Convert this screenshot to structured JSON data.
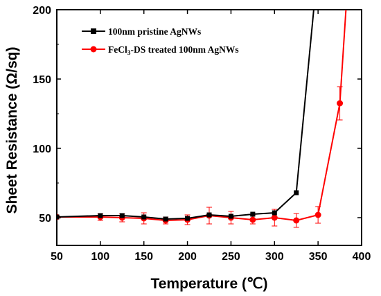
{
  "chart_data": {
    "type": "line",
    "xlabel": "Temperature (℃)",
    "ylabel": "Sheet Resistance (Ω/sq)",
    "xlim": [
      50,
      400
    ],
    "ylim": [
      30,
      200
    ],
    "x_ticks": [
      50,
      100,
      150,
      200,
      250,
      300,
      350,
      400
    ],
    "y_ticks": [
      50,
      100,
      150,
      200
    ],
    "grid": false,
    "legend_position": "top-left",
    "series": [
      {
        "name": "100nm pristine AgNWs",
        "color": "#000000",
        "marker": "square",
        "x": [
          50,
          100,
          125,
          150,
          175,
          200,
          225,
          250,
          275,
          300,
          325,
          345
        ],
        "y": [
          50.5,
          51.5,
          51.5,
          50.5,
          49,
          49.5,
          52,
          51,
          52.5,
          53.5,
          68,
          200
        ],
        "marker_count": 11
      },
      {
        "name": "FeCl3-DS treated 100nm AgNWs",
        "color": "#ff0000",
        "marker": "circle",
        "x": [
          50,
          100,
          125,
          150,
          175,
          200,
          225,
          250,
          275,
          300,
          325,
          350,
          375,
          382
        ],
        "y": [
          50.5,
          50.5,
          50,
          49.5,
          48,
          48.5,
          51.5,
          50,
          48.5,
          50,
          48,
          52,
          132.5,
          200
        ],
        "err": [
          0,
          2.5,
          3,
          4,
          2.5,
          3.5,
          6,
          4.5,
          3,
          6,
          5,
          6,
          12,
          0
        ],
        "marker_count": 13
      }
    ]
  }
}
